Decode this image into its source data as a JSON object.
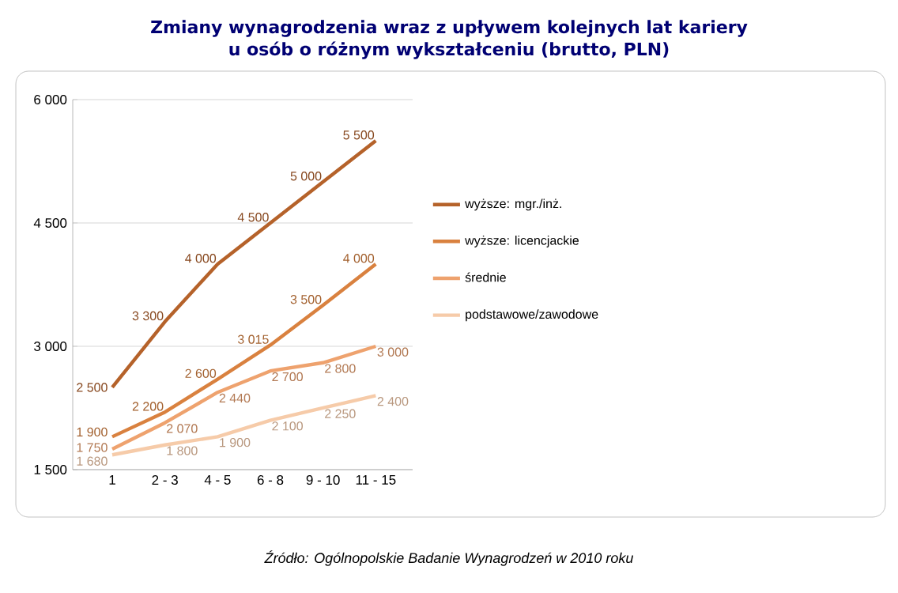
{
  "chart_data": {
    "type": "line",
    "title": "Zmiany wynagrodzenia wraz z upływem kolejnych lat kariery\nu osób o różnym wykształceniu (brutto, PLN)",
    "categories": [
      "1",
      "2 - 3",
      "4 - 5",
      "6 - 8",
      "9 - 10",
      "11 - 15"
    ],
    "series": [
      {
        "name": "wyższe: mgr./inż.",
        "color": "#b5622a",
        "values": [
          2500,
          3300,
          4000,
          4500,
          5000,
          5500
        ],
        "value_labels": [
          "2 500",
          "3 300",
          "4 000",
          "4 500",
          "5 000",
          "5 500"
        ]
      },
      {
        "name": "wyższe: licencjackie",
        "color": "#d9813f",
        "values": [
          1900,
          2200,
          2600,
          3015,
          3500,
          4000
        ],
        "value_labels": [
          "1 900",
          "2 200",
          "2 600",
          "3 015",
          "3 500",
          "4 000"
        ]
      },
      {
        "name": "średnie",
        "color": "#eea26e",
        "values": [
          1750,
          2070,
          2440,
          2700,
          2800,
          3000
        ],
        "value_labels": [
          "1 750",
          "2 070",
          "2 440",
          "2 700",
          "2 800",
          "3 000"
        ]
      },
      {
        "name": "podstawowe/zawodowe",
        "color": "#f6cba9",
        "values": [
          1680,
          1800,
          1900,
          2100,
          2250,
          2400
        ],
        "value_labels": [
          "1 680",
          "1 800",
          "1 900",
          "2 100",
          "2 250",
          "2 400"
        ]
      }
    ],
    "ylim": [
      1500,
      6000
    ],
    "yticks": [
      {
        "value": 1500,
        "label": "1 500"
      },
      {
        "value": 3000,
        "label": "3 000"
      },
      {
        "value": 4500,
        "label": "4 500"
      },
      {
        "value": 6000,
        "label": "6 000"
      }
    ],
    "grid": "y",
    "legend": "right",
    "marker": "none",
    "line_style": "solid",
    "annotations": [
      "Źródło: Ogólnopolskie Badanie Wynagrodzeń w 2010 roku"
    ]
  }
}
